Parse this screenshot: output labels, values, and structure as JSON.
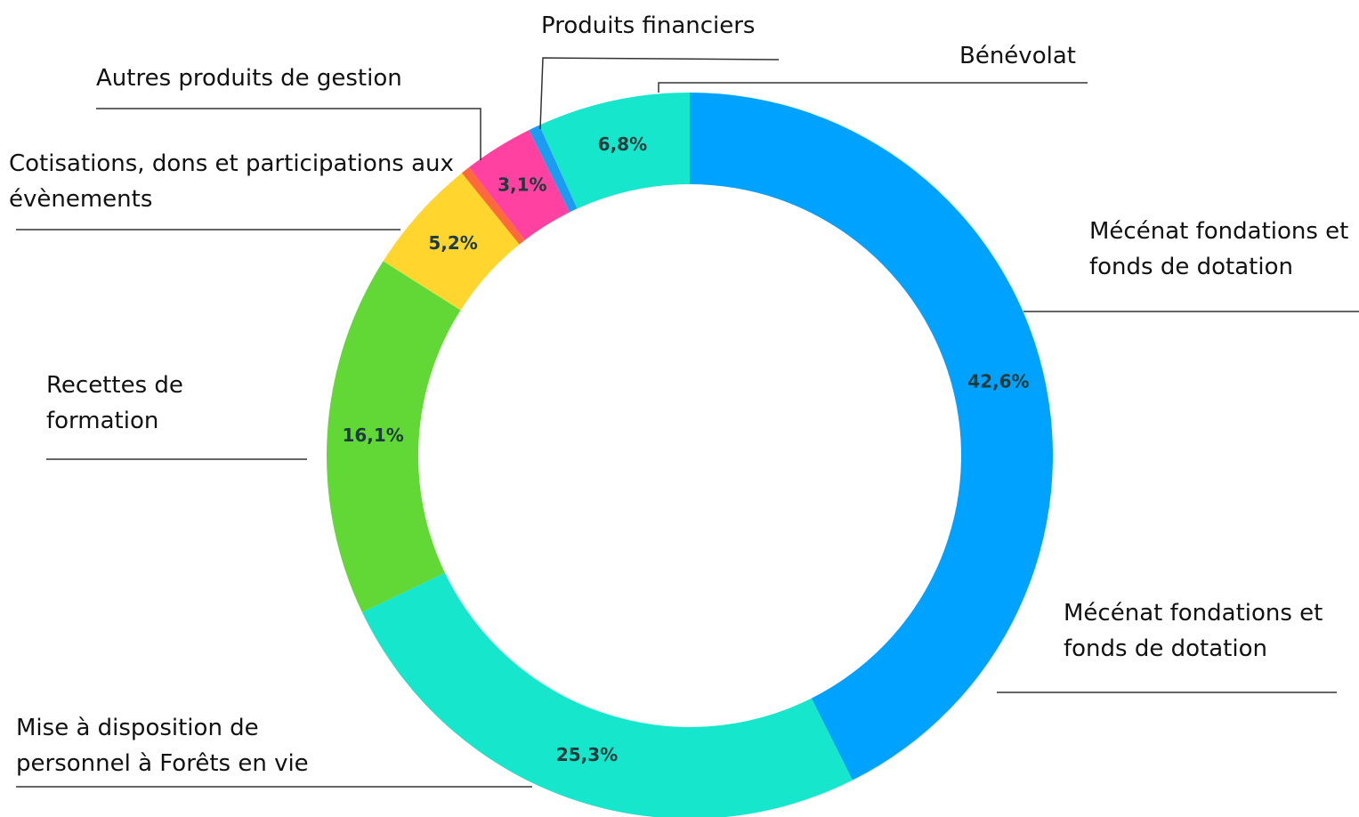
{
  "chart_data": {
    "type": "donut",
    "categories": [
      "Mécénat fondations et fonds de dotation",
      "Mise à disposition de personnel à Forêts en vie",
      "Recettes de formation",
      "Cotisations, dons et participations aux évènements",
      null,
      "Autres produits de gestion",
      "Produits financiers",
      "Bénévolat"
    ],
    "values": [
      42.6,
      25.3,
      16.1,
      5.2,
      0.4,
      3.1,
      0.5,
      6.8
    ],
    "value_labels": [
      "42,6%",
      "25,3%",
      "16,1%",
      "5,2%",
      null,
      "3,1%",
      null,
      "6,8%"
    ],
    "colors": [
      "#00a2ff",
      "#16e6cc",
      "#61d836",
      "#ffd52e",
      "#ff6a3d",
      "#ff42a1",
      "#1a9cf0",
      "#16e6cc"
    ],
    "annotations": [
      {
        "text": "Mécénat fondations et fonds de dotation"
      }
    ]
  }
}
